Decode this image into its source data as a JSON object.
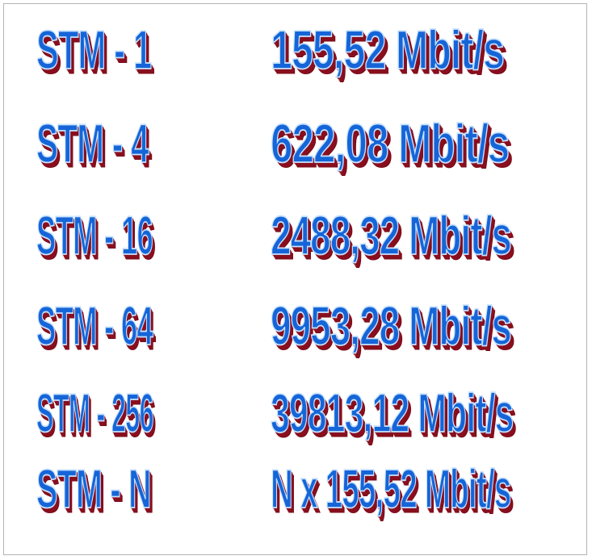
{
  "rows": [
    {
      "level": "STM - 1",
      "rate": "155,52 Mbit/s"
    },
    {
      "level": "STM - 4",
      "rate": "622,08 Mbit/s"
    },
    {
      "level": "STM - 16",
      "rate": "2488,32 Mbit/s"
    },
    {
      "level": "STM - 64",
      "rate": "9953,28 Mbit/s"
    },
    {
      "level": "STM - 256",
      "rate": "39813,12 Mbit/s"
    },
    {
      "level": "STM - N",
      "rate": "N x 155,52 Mbit/s"
    }
  ],
  "colors": {
    "text_fill": "#1565d8",
    "text_outline": "#c8e2ff",
    "text_shadow": "#8a0f1e",
    "frame_border": "#b3b3b3"
  }
}
